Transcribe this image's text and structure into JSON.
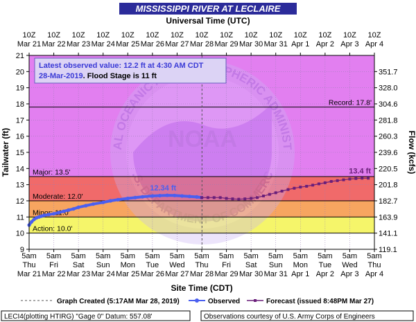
{
  "title": "MISSISSIPPI RIVER AT LECLAIRE",
  "top_axis_title": "Universal Time (UTC)",
  "bottom_axis_title": "Site Time (CDT)",
  "left_axis_title": "Tailwater (ft)",
  "right_axis_title": "Flow (kcfs)",
  "info_box": {
    "line1": "Latest observed value: 12.2 ft at 4:30 AM CDT",
    "line2_date": "28-Mar-2019",
    "line2_rest": ".  Flood Stage is 11 ft"
  },
  "legend": {
    "created": "Graph Created (5:17AM Mar 28, 2019)",
    "observed": "Observed",
    "forecast": "Forecast (issued 8:48PM Mar 27)"
  },
  "footer": {
    "left": "LECI4(plotting HTIRG) \"Gage 0\" Datum:  557.08'",
    "right": "Observations courtesy of U.S. Army Corps of Engineers"
  },
  "watermark_text": {
    "top_arc": "NATIONAL OCEANIC AND ATMOSPHERIC ADMINISTRATION",
    "bottom_arc": "U.S. DEPARTMENT OF COMMERCE",
    "center": "NOAA"
  },
  "colors": {
    "record_zone": "#e27ff0",
    "major_zone": "#f06a6a",
    "moderate_zone": "#f7a560",
    "minor_zone": "#f5f56a",
    "below_zone": "#ffffff",
    "observed": "#4a5ff0",
    "forecast": "#6a1f7a",
    "title_bar": "#2b2b9a"
  },
  "chart_data": {
    "type": "line",
    "title": "MISSISSIPPI RIVER AT LECLAIRE",
    "x_start": "2019-03-21T05:00",
    "x_end": "2019-04-04T05:00",
    "ylim": [
      9,
      21
    ],
    "y_ticks": [
      9,
      10,
      11,
      12,
      13,
      14,
      15,
      16,
      17,
      18,
      19,
      20,
      21
    ],
    "flow_ticks": [
      {
        "stage": 9,
        "label": "119.1"
      },
      {
        "stage": 10,
        "label": "141.1"
      },
      {
        "stage": 11,
        "label": "163.9"
      },
      {
        "stage": 12,
        "label": "182.7"
      },
      {
        "stage": 13,
        "label": "201.8"
      },
      {
        "stage": 14,
        "label": "220.5"
      },
      {
        "stage": 15,
        "label": "239.6"
      },
      {
        "stage": 16,
        "label": "260.3"
      },
      {
        "stage": 17,
        "label": "281.8"
      },
      {
        "stage": 18,
        "label": "304.6"
      },
      {
        "stage": 19,
        "label": "328.0"
      },
      {
        "stage": 20,
        "label": "351.7"
      }
    ],
    "bottom_ticks": [
      {
        "day": 0,
        "time": "5am",
        "weekday": "Thu",
        "date": "Mar 21"
      },
      {
        "day": 1,
        "time": "5am",
        "weekday": "Fri",
        "date": "Mar 22"
      },
      {
        "day": 2,
        "time": "5am",
        "weekday": "Sat",
        "date": "Mar 23"
      },
      {
        "day": 3,
        "time": "5am",
        "weekday": "Sun",
        "date": "Mar 24"
      },
      {
        "day": 4,
        "time": "5am",
        "weekday": "Mon",
        "date": "Mar 25"
      },
      {
        "day": 5,
        "time": "5am",
        "weekday": "Tue",
        "date": "Mar 26"
      },
      {
        "day": 6,
        "time": "5am",
        "weekday": "Wed",
        "date": "Mar 27"
      },
      {
        "day": 7,
        "time": "5am",
        "weekday": "Thu",
        "date": "Mar 28"
      },
      {
        "day": 8,
        "time": "5am",
        "weekday": "Fri",
        "date": "Mar 29"
      },
      {
        "day": 9,
        "time": "5am",
        "weekday": "Sat",
        "date": "Mar 30"
      },
      {
        "day": 10,
        "time": "5am",
        "weekday": "Sun",
        "date": "Mar 31"
      },
      {
        "day": 11,
        "time": "5am",
        "weekday": "Mon",
        "date": "Apr 1"
      },
      {
        "day": 12,
        "time": "5am",
        "weekday": "Tue",
        "date": "Apr 2"
      },
      {
        "day": 13,
        "time": "5am",
        "weekday": "Wed",
        "date": "Apr 3"
      },
      {
        "day": 14,
        "time": "5am",
        "weekday": "Thu",
        "date": "Apr 4"
      }
    ],
    "top_ticks": [
      {
        "day": 0,
        "time": "10Z",
        "date": "Mar 21"
      },
      {
        "day": 1,
        "time": "10Z",
        "date": "Mar 22"
      },
      {
        "day": 2,
        "time": "10Z",
        "date": "Mar 23"
      },
      {
        "day": 3,
        "time": "10Z",
        "date": "Mar 24"
      },
      {
        "day": 4,
        "time": "10Z",
        "date": "Mar 25"
      },
      {
        "day": 5,
        "time": "10Z",
        "date": "Mar 26"
      },
      {
        "day": 6,
        "time": "10Z",
        "date": "Mar 27"
      },
      {
        "day": 7,
        "time": "10Z",
        "date": "Mar 28"
      },
      {
        "day": 8,
        "time": "10Z",
        "date": "Mar 29"
      },
      {
        "day": 9,
        "time": "10Z",
        "date": "Mar 30"
      },
      {
        "day": 10,
        "time": "10Z",
        "date": "Mar 31"
      },
      {
        "day": 11,
        "time": "10Z",
        "date": "Apr 1"
      },
      {
        "day": 12,
        "time": "10Z",
        "date": "Apr 2"
      },
      {
        "day": 13,
        "time": "10Z",
        "date": "Apr 3"
      },
      {
        "day": 14,
        "time": "10Z",
        "date": "Apr 4"
      }
    ],
    "flood_categories": [
      {
        "name": "Action",
        "stage": 10.0,
        "label": "Action: 10.0'"
      },
      {
        "name": "Minor",
        "stage": 11.0,
        "label": "Minor: 11.0'"
      },
      {
        "name": "Moderate",
        "stage": 12.0,
        "label": "Moderate: 12.0'"
      },
      {
        "name": "Major",
        "stage": 13.5,
        "label": "Major: 13.5'"
      },
      {
        "name": "Record",
        "stage": 17.8,
        "label": "Record: 17.8'"
      }
    ],
    "graph_created_day": 7.01,
    "observed": {
      "name": "Observed",
      "peak_label": "12.34 ft",
      "peak_day": 5.6,
      "x": [
        0.0,
        0.1,
        0.2,
        0.3,
        0.4,
        0.5,
        0.6,
        0.8,
        1.0,
        1.2,
        1.4,
        1.6,
        1.8,
        2.0,
        2.3,
        2.6,
        3.0,
        3.3,
        3.6,
        4.0,
        4.3,
        4.6,
        5.0,
        5.3,
        5.6,
        5.9,
        6.2,
        6.5,
        6.8,
        7.0
      ],
      "y": [
        10.5,
        10.7,
        10.85,
        10.95,
        11.0,
        11.05,
        11.1,
        11.15,
        11.2,
        11.27,
        11.35,
        11.43,
        11.5,
        11.6,
        11.7,
        11.8,
        11.9,
        12.0,
        12.07,
        12.15,
        12.2,
        12.25,
        12.3,
        12.32,
        12.34,
        12.33,
        12.3,
        12.27,
        12.24,
        12.2
      ]
    },
    "forecast": {
      "name": "Forecast",
      "end_label": "13.4 ft",
      "x": [
        7.0,
        7.25,
        7.5,
        7.75,
        8.0,
        8.25,
        8.5,
        8.75,
        9.0,
        9.25,
        9.5,
        9.75,
        10.0,
        10.25,
        10.5,
        10.75,
        11.0,
        11.25,
        11.5,
        11.75,
        12.0,
        12.25,
        12.5,
        12.75,
        13.0,
        13.25,
        13.5,
        13.75
      ],
      "y": [
        12.2,
        12.2,
        12.2,
        12.2,
        12.15,
        12.12,
        12.1,
        12.12,
        12.15,
        12.2,
        12.3,
        12.4,
        12.5,
        12.6,
        12.7,
        12.78,
        12.85,
        12.9,
        12.97,
        13.05,
        13.12,
        13.2,
        13.25,
        13.3,
        13.35,
        13.38,
        13.4,
        13.4
      ]
    }
  }
}
